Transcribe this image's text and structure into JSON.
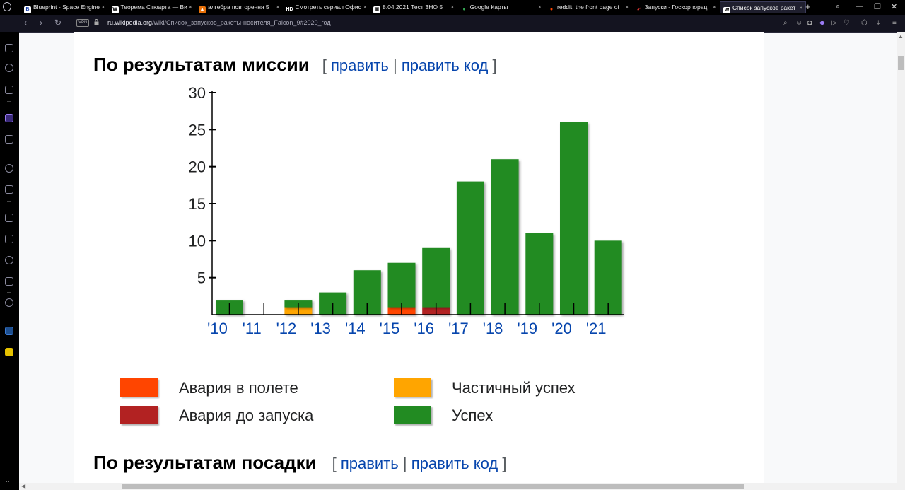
{
  "browser": {
    "tabs": [
      {
        "title": "Blueprint - Space Engine",
        "favicon": "B",
        "favicon_bg": "#ffffff",
        "favicon_fg": "#1a3fa8"
      },
      {
        "title": "Теорема Стюарта — Ви",
        "favicon": "W",
        "favicon_bg": "#ffffff",
        "favicon_fg": "#000000"
      },
      {
        "title": "алгебра повторення 5",
        "favicon": "▲",
        "favicon_bg": "#e8710a",
        "favicon_fg": "#ffffff"
      },
      {
        "title": "Смотреть сериал Офис",
        "favicon": "HD",
        "favicon_bg": "#000000",
        "favicon_fg": "#ffffff"
      },
      {
        "title": "8.04.2021 Тест ЗНО 5",
        "favicon": "▣",
        "favicon_bg": "#ffffff",
        "favicon_fg": "#333333"
      },
      {
        "title": "Google Карты",
        "favicon": "●",
        "favicon_bg": "#000000",
        "favicon_fg": "#34a853"
      },
      {
        "title": "reddit: the front page of",
        "favicon": "●",
        "favicon_bg": "#000000",
        "favicon_fg": "#ff4500"
      },
      {
        "title": "Запуски - Госкорпорац",
        "favicon": "➶",
        "favicon_bg": "#000000",
        "favicon_fg": "#e53935"
      },
      {
        "title": "Список запусков ракет",
        "favicon": "W",
        "favicon_bg": "#ffffff",
        "favicon_fg": "#000000",
        "active": true
      }
    ],
    "new_tab": "+",
    "vpn_badge": "VPN",
    "url_domain": "ru.wikipedia.org",
    "url_path": "/wiki/Список_запусков_ракеты-носителя_Falcon_9#2020_год"
  },
  "page": {
    "heading1": "По результатам миссии",
    "heading2": "По результатам посадки",
    "edit_open": "[",
    "edit_sep": "|",
    "edit_close": "]",
    "edit_link": "править",
    "edit_code_link": "править код"
  },
  "chart_data": {
    "type": "bar",
    "stacked": true,
    "categories": [
      "'10",
      "'11",
      "'12",
      "'13",
      "'14",
      "'15",
      "'16",
      "'17",
      "'18",
      "'19",
      "'20",
      "'21"
    ],
    "series": [
      {
        "name": "Авария до запуска",
        "color": "#b22222",
        "values": [
          0,
          0,
          0,
          0,
          0,
          0,
          1,
          0,
          0,
          0,
          0,
          0
        ]
      },
      {
        "name": "Авария в полете",
        "color": "#ff4500",
        "values": [
          0,
          0,
          0,
          0,
          0,
          1,
          0,
          0,
          0,
          0,
          0,
          0
        ]
      },
      {
        "name": "Частичный успех",
        "color": "#ffa500",
        "values": [
          0,
          0,
          1,
          0,
          0,
          0,
          0,
          0,
          0,
          0,
          0,
          0
        ]
      },
      {
        "name": "Успех",
        "color": "#228b22",
        "values": [
          2,
          0,
          1,
          3,
          6,
          6,
          8,
          18,
          21,
          11,
          26,
          10
        ]
      }
    ],
    "yticks": [
      5,
      10,
      15,
      20,
      25,
      30
    ],
    "ylim": [
      0,
      30
    ],
    "legend_position": "bottom",
    "legend_order": [
      "Авария в полете",
      "Частичный успех",
      "Авария до запуска",
      "Успех"
    ],
    "grid": false
  }
}
